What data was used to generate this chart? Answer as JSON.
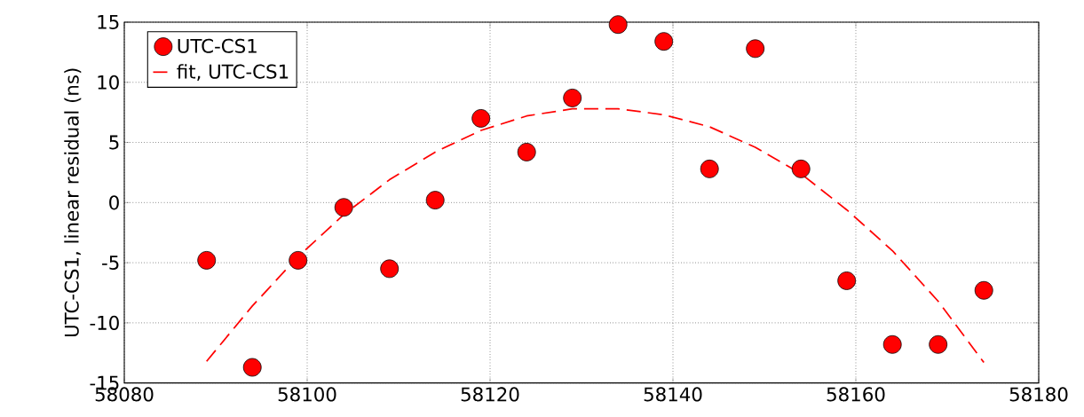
{
  "chart_data": {
    "type": "scatter",
    "ylabel": "UTC-CS1, linear residual (ns)",
    "xlim": [
      58080,
      58180
    ],
    "xticks": [
      58080,
      58100,
      58120,
      58140,
      58160,
      58180
    ],
    "ylim": [
      -15,
      15
    ],
    "yticks": [
      -15,
      -10,
      -5,
      0,
      5,
      10,
      15
    ],
    "grid": true,
    "legend": "top left",
    "marker": "circle",
    "series": [
      {
        "name": "UTC-CS1",
        "color": "#ff0000",
        "x": [
          58089,
          58094,
          58099,
          58104,
          58109,
          58114,
          58119,
          58124,
          58129,
          58134,
          58139,
          58144,
          58149,
          58154,
          58159,
          58164,
          58169,
          58174
        ],
        "values": [
          -4.8,
          -13.7,
          -4.8,
          -0.4,
          -5.5,
          0.2,
          7.0,
          4.2,
          8.7,
          14.8,
          13.4,
          2.8,
          12.8,
          2.8,
          -6.5,
          -11.8,
          -11.8,
          -7.3
        ]
      },
      {
        "name": "fit, UTC-CS1",
        "type": "line",
        "color": "#ff0000",
        "line_style": "dashed",
        "marker": "none",
        "x": [
          58089,
          58094,
          58099,
          58104,
          58109,
          58114,
          58119,
          58124,
          58129,
          58134,
          58139,
          58144,
          58149,
          58154,
          58159,
          58164,
          58169,
          58174
        ],
        "values": [
          -13.2,
          -8.6,
          -4.5,
          -1.0,
          1.9,
          4.2,
          6.0,
          7.2,
          7.8,
          7.8,
          7.3,
          6.3,
          4.6,
          2.4,
          -0.6,
          -4.0,
          -8.2,
          -13.3
        ]
      }
    ]
  }
}
